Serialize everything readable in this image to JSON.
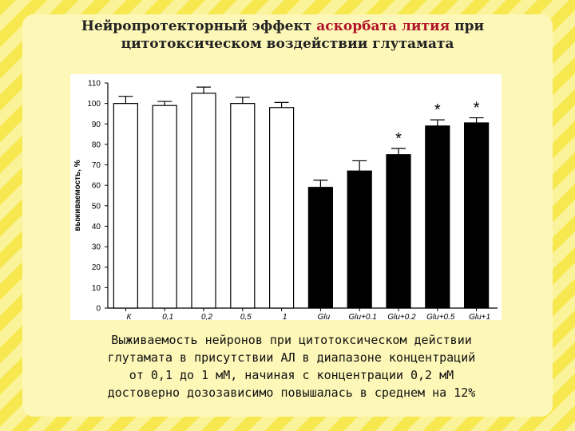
{
  "slide": {
    "title_part1": "Нейропротекторный эффект ",
    "title_highlight": "аскорбата лития",
    "title_part2": " при",
    "title_line2": "цитотоксическом воздействии глутамата",
    "caption_lines": [
      "Выживаемость нейронов при цитотоксическом действии",
      "глутамата в присутствии АЛ в диапазоне концентраций",
      "от 0,1 до 1 мМ, начиная  с концентрации 0,2 мМ",
      "достоверно дозозависимо повышалась в среднем на 12%"
    ]
  },
  "colors": {
    "highlight": "#b0122a",
    "bar_fill_control": "#ffffff",
    "bar_fill_glu": "#000000"
  },
  "chart_data": {
    "type": "bar",
    "title": "",
    "xlabel": "",
    "ylabel": "выживаемость, %",
    "ylim": [
      0,
      110
    ],
    "yticks": [
      0,
      10,
      20,
      30,
      40,
      50,
      60,
      70,
      80,
      90,
      100,
      110
    ],
    "categories": [
      "К",
      "0,1",
      "0,2",
      "0,5",
      "1",
      "Glu",
      "Glu+0.1",
      "Glu+0.2",
      "Glu+0.5",
      "Glu+1"
    ],
    "values": [
      100,
      99,
      105,
      100,
      98,
      59,
      67,
      75,
      89,
      90.5
    ],
    "errors": [
      3.5,
      2,
      3,
      3,
      2.5,
      3.5,
      5,
      3,
      3,
      2.5
    ],
    "fill": [
      "white",
      "white",
      "white",
      "white",
      "white",
      "black",
      "black",
      "black",
      "black",
      "black"
    ],
    "significance": [
      "",
      "",
      "",
      "",
      "",
      "",
      "",
      "*",
      "*",
      "*"
    ],
    "grid": false,
    "legend": "none"
  }
}
